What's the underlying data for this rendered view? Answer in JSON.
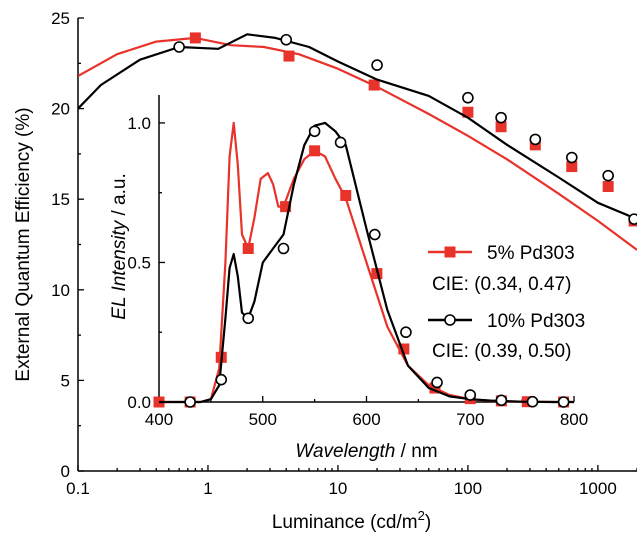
{
  "chart_data": [
    {
      "id": "main",
      "type": "line",
      "xlabel": "Luminance (cd/m",
      "xlabel_sup": "2",
      "xlabel_end": ")",
      "ylabel": "External Quantum Efficiency (%)",
      "xscale": "log",
      "xlim": [
        0.1,
        2000
      ],
      "ylim": [
        0,
        25
      ],
      "xticks": [
        0.1,
        1,
        10,
        100,
        1000
      ],
      "xtick_labels": [
        "0.1",
        "1",
        "10",
        "100",
        "1000"
      ],
      "yticks": [
        0,
        5,
        10,
        15,
        20,
        25
      ],
      "ytick_labels": [
        "0",
        "5",
        "10",
        "15",
        "20",
        "25"
      ],
      "series": [
        {
          "name": "5% Pd303",
          "color": "#e8332a",
          "marker": "square",
          "x": [
            0.1,
            0.2,
            0.4,
            0.8,
            1.5,
            2.7,
            5,
            10,
            20,
            50,
            100,
            200,
            500,
            1000,
            2000
          ],
          "y": [
            21.8,
            23.0,
            23.7,
            23.9,
            23.5,
            23.4,
            23.0,
            22.2,
            21.2,
            19.7,
            18.5,
            17.2,
            15.3,
            13.8,
            12.2
          ],
          "marker_x": [
            0.8,
            4.2,
            19,
            100,
            180,
            330,
            630,
            1200,
            1900
          ],
          "marker_y": [
            23.9,
            22.9,
            21.3,
            19.8,
            19.0,
            18.0,
            16.8,
            15.7,
            13.8
          ]
        },
        {
          "name": "10% Pd303",
          "color": "#000000",
          "marker": "circle",
          "x": [
            0.1,
            0.15,
            0.3,
            0.6,
            1.2,
            2,
            3.3,
            6,
            10,
            20,
            50,
            100,
            200,
            500,
            1000,
            2000
          ],
          "y": [
            20.0,
            21.3,
            22.7,
            23.4,
            23.3,
            24.1,
            23.9,
            23.4,
            22.6,
            21.6,
            20.7,
            19.5,
            18.0,
            16.2,
            14.8,
            13.9
          ],
          "marker_x": [
            0.6,
            4.0,
            20,
            100,
            180,
            330,
            630,
            1200,
            1900
          ],
          "marker_y": [
            23.4,
            23.8,
            22.4,
            20.6,
            19.5,
            18.3,
            17.3,
            16.3,
            13.9
          ]
        }
      ]
    },
    {
      "id": "inset",
      "type": "line",
      "xlabel": "Wavelength",
      "xlabel_unit": " / nm",
      "ylabel": "EL Intensity",
      "ylabel_unit": " / a.u.",
      "xlim": [
        400,
        800
      ],
      "ylim": [
        0,
        1.1
      ],
      "xticks": [
        400,
        500,
        600,
        700,
        800
      ],
      "xtick_labels": [
        "400",
        "500",
        "600",
        "700",
        "800"
      ],
      "yticks": [
        0,
        0.5,
        1.0
      ],
      "ytick_labels": [
        "0.0",
        "0.5",
        "1.0"
      ],
      "series": [
        {
          "name": "5% Pd303",
          "legend_cie": "CIE: (0.34, 0.47)",
          "color": "#e8332a",
          "marker": "square",
          "x": [
            400,
            420,
            440,
            450,
            458,
            464,
            468,
            472,
            476,
            480,
            486,
            492,
            498,
            505,
            510,
            515,
            520,
            530,
            540,
            550,
            560,
            570,
            580,
            600,
            620,
            640,
            660,
            680,
            700,
            720,
            750,
            780,
            800
          ],
          "y": [
            0,
            0,
            0,
            0.01,
            0.12,
            0.5,
            0.88,
            1.0,
            0.85,
            0.6,
            0.55,
            0.66,
            0.8,
            0.82,
            0.78,
            0.7,
            0.7,
            0.8,
            0.87,
            0.9,
            0.88,
            0.8,
            0.73,
            0.5,
            0.27,
            0.13,
            0.06,
            0.025,
            0.01,
            0.004,
            0.001,
            0.0,
            0.0
          ],
          "marker_x": [
            400,
            430,
            460,
            486,
            522,
            550,
            580,
            610,
            636,
            666,
            700,
            730,
            755,
            790
          ],
          "marker_y": [
            0,
            0,
            0.16,
            0.55,
            0.7,
            0.9,
            0.74,
            0.46,
            0.19,
            0.05,
            0.012,
            0.004,
            0.001,
            0.0
          ]
        },
        {
          "name": "10% Pd303",
          "legend_cie": "CIE: (0.39, 0.50)",
          "color": "#000000",
          "marker": "circle",
          "x": [
            400,
            420,
            440,
            450,
            458,
            464,
            468,
            472,
            476,
            480,
            486,
            492,
            500,
            510,
            520,
            530,
            540,
            550,
            560,
            570,
            580,
            600,
            620,
            640,
            660,
            680,
            700,
            720,
            750,
            780,
            800
          ],
          "y": [
            0,
            0,
            0,
            0.01,
            0.06,
            0.3,
            0.48,
            0.53,
            0.45,
            0.32,
            0.3,
            0.36,
            0.5,
            0.55,
            0.6,
            0.78,
            0.92,
            0.99,
            1.0,
            0.97,
            0.92,
            0.62,
            0.33,
            0.13,
            0.05,
            0.02,
            0.01,
            0.005,
            0.001,
            0.0,
            0.0
          ],
          "marker_x": [
            430,
            460,
            486,
            520,
            550,
            575,
            608,
            638,
            668,
            700,
            730,
            760,
            790
          ],
          "marker_y": [
            0,
            0.08,
            0.3,
            0.55,
            0.97,
            0.93,
            0.6,
            0.25,
            0.07,
            0.025,
            0.006,
            0.001,
            0.0
          ]
        }
      ]
    }
  ]
}
